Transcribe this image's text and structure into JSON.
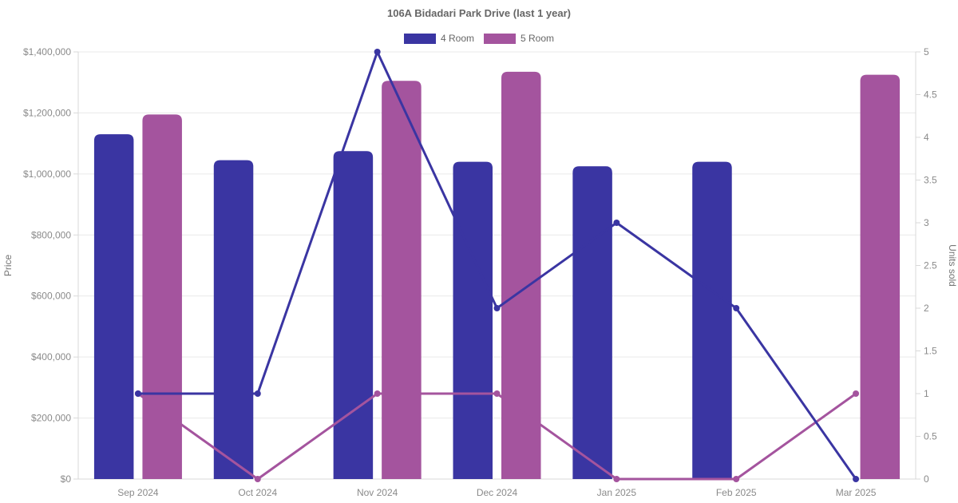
{
  "chart_data": {
    "type": "bar",
    "subtype": "combo-bar-line-dual-axis",
    "title": "106A Bidadari Park Drive (last 1 year)",
    "categories": [
      "Sep 2024",
      "Oct 2024",
      "Nov 2024",
      "Dec 2024",
      "Jan 2025",
      "Feb 2025",
      "Mar 2025"
    ],
    "series": [
      {
        "name": "4 Room",
        "color": "#3a35a2",
        "prices": [
          1130000,
          1045000,
          1075000,
          1040000,
          1025000,
          1040000,
          null
        ],
        "units": [
          1,
          1,
          5,
          2,
          3,
          2,
          0
        ]
      },
      {
        "name": "5 Room",
        "color": "#a4549e",
        "prices": [
          1195000,
          null,
          1305000,
          1335000,
          null,
          null,
          1325000
        ],
        "units": [
          1,
          0,
          1,
          1,
          0,
          0,
          1
        ]
      }
    ],
    "y_left": {
      "label": "Price",
      "min": 0,
      "max": 1400000,
      "step": 200000,
      "tick_labels": [
        "$0",
        "$200,000",
        "$400,000",
        "$600,000",
        "$800,000",
        "$1,000,000",
        "$1,200,000",
        "$1,400,000"
      ]
    },
    "y_right": {
      "label": "Units sold",
      "min": 0,
      "max": 5,
      "step": 0.5,
      "tick_labels": [
        "0",
        "0.5",
        "1",
        "1.5",
        "2",
        "2.5",
        "3",
        "3.5",
        "4",
        "4.5",
        "5"
      ]
    },
    "legend": {
      "position": "top"
    },
    "grid": "horizontal-only",
    "colors": {
      "grid": "#e9e9e9",
      "axis_border": "#d9d9d9",
      "title_text": "#666666",
      "tick_text": "#8a8a8a",
      "axis_title_text": "#757575",
      "background": "#ffffff"
    }
  }
}
